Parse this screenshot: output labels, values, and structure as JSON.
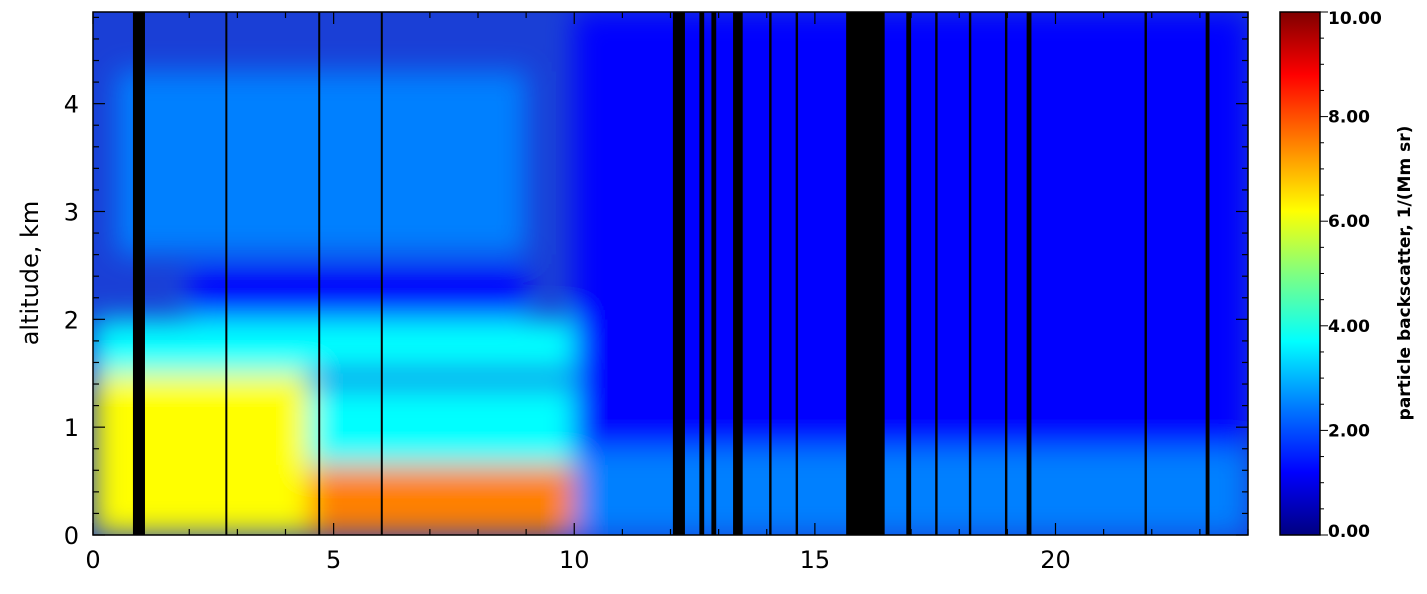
{
  "chart_data": {
    "type": "heatmap",
    "title": "",
    "xlabel": "",
    "ylabel": "altitude, km",
    "xlim": [
      0,
      24
    ],
    "ylim": [
      0,
      4.85
    ],
    "x_ticks": [
      "0",
      "5",
      "10",
      "15",
      "20"
    ],
    "x_tick_values": [
      0,
      5,
      10,
      15,
      20
    ],
    "y_ticks": [
      "0",
      "1",
      "2",
      "3",
      "4"
    ],
    "y_tick_values": [
      0,
      1,
      2,
      3,
      4
    ],
    "colorbar": {
      "label": "particle backscatter, 1/(Mm sr)",
      "range": [
        0,
        10
      ],
      "ticks": [
        "0.00",
        "2.00",
        "4.00",
        "6.00",
        "8.00",
        "10.00"
      ],
      "tick_values": [
        0,
        2,
        4,
        6,
        8,
        10
      ],
      "colors": [
        "#000080",
        "#0000ff",
        "#0080ff",
        "#00ffff",
        "#80ff80",
        "#ffff00",
        "#ff8000",
        "#ff0000",
        "#800000"
      ]
    },
    "missing_value_color": "#000000",
    "saturated_color": "#ffffff",
    "regions": [
      {
        "x": [
          0.0,
          12.0
        ],
        "y": [
          0.0,
          0.65
        ],
        "value": 7.0
      },
      {
        "x": [
          0.0,
          4.5
        ],
        "y": [
          0.0,
          1.5
        ],
        "value": 6.5
      },
      {
        "x": [
          4.5,
          10.0
        ],
        "y": [
          0.65,
          1.4
        ],
        "value": 3.5
      },
      {
        "x": [
          0.0,
          10.0
        ],
        "y": [
          1.5,
          2.0
        ],
        "value": 3.2
      },
      {
        "x": [
          0.5,
          9.0
        ],
        "y": [
          2.6,
          4.3
        ],
        "value": 2.3
      },
      {
        "x": [
          2.0,
          9.0
        ],
        "y": [
          2.0,
          2.5
        ],
        "value": 1.2
      },
      {
        "x": [
          10.0,
          24.0
        ],
        "y": [
          0.0,
          0.8
        ],
        "value": 2.0
      },
      {
        "x": [
          10.0,
          24.0
        ],
        "y": [
          0.8,
          4.85
        ],
        "value": 1.0
      }
    ],
    "missing_data_bands": [
      [
        0.83,
        1.08
      ],
      [
        2.75,
        2.78
      ],
      [
        4.68,
        4.72
      ],
      [
        5.98,
        6.02
      ],
      [
        12.05,
        12.3
      ],
      [
        12.6,
        12.7
      ],
      [
        12.85,
        12.95
      ],
      [
        13.3,
        13.5
      ],
      [
        14.05,
        14.1
      ],
      [
        14.6,
        14.65
      ],
      [
        15.65,
        16.45
      ],
      [
        16.9,
        17.0
      ],
      [
        17.5,
        17.55
      ],
      [
        18.2,
        18.25
      ],
      [
        18.95,
        19.0
      ],
      [
        19.4,
        19.5
      ],
      [
        21.85,
        21.9
      ],
      [
        23.12,
        23.2
      ]
    ]
  }
}
